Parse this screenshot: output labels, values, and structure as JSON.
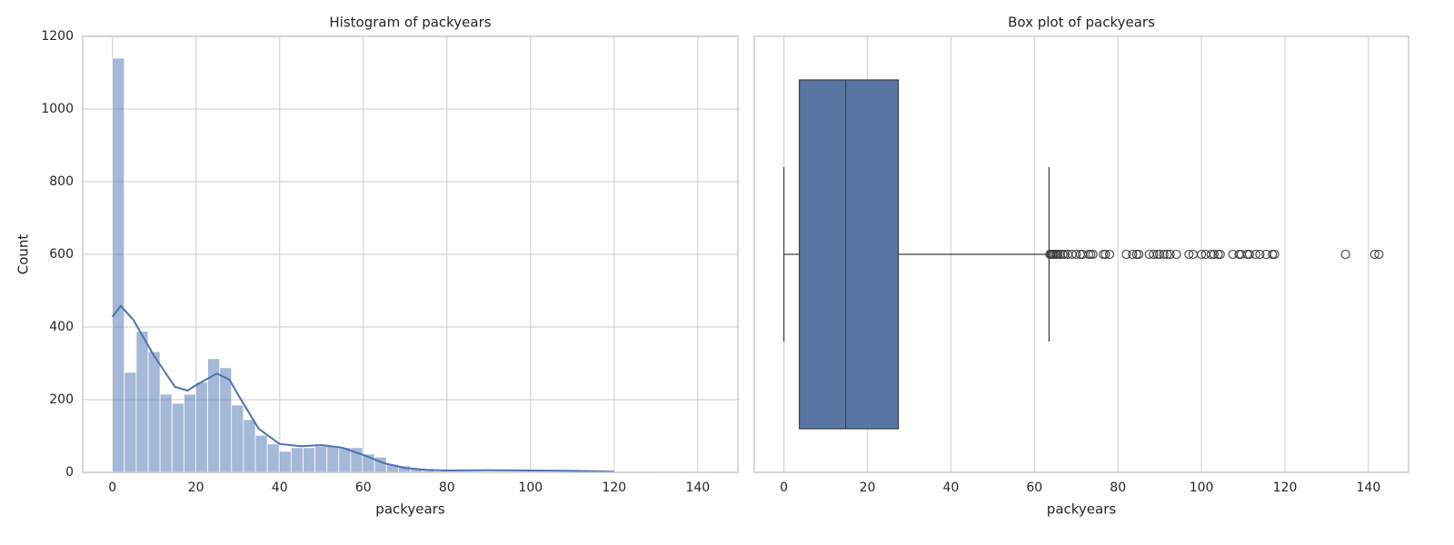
{
  "chart_data": [
    {
      "type": "histogram",
      "title": "Histogram of packyears",
      "xlabel": "packyears",
      "ylabel": "Count",
      "bins": [
        0,
        2.85,
        5.7,
        8.55,
        11.4,
        14.25,
        17.1,
        19.95,
        22.8,
        25.65,
        28.5,
        31.35,
        34.2,
        37.05,
        39.9,
        42.75,
        45.6,
        48.45,
        51.3,
        54.15,
        57,
        59.85,
        62.7,
        65.55,
        68.4,
        71.25,
        74.1,
        76.95,
        79.8,
        82.65,
        85.5,
        88.35,
        91.2,
        94.05,
        96.9,
        99.75,
        102.6,
        105.45,
        108.3,
        111.15,
        114,
        116.85,
        119.7,
        122.55,
        125.4,
        128.25,
        131.1,
        133.95,
        136.8,
        139.65,
        142.5
      ],
      "counts": [
        1140,
        275,
        388,
        332,
        215,
        190,
        215,
        248,
        313,
        288,
        185,
        145,
        102,
        78,
        58,
        68,
        68,
        72,
        72,
        68,
        68,
        50,
        42,
        22,
        18,
        8,
        5,
        3,
        2,
        2,
        1,
        2,
        1,
        1,
        2,
        1,
        2,
        2,
        1,
        2,
        1,
        0,
        0,
        0,
        0,
        0,
        1,
        0,
        0,
        2
      ],
      "color": "#4c72b0",
      "kde": {
        "x": [
          0,
          2,
          5,
          10,
          15,
          18,
          20,
          25,
          28,
          30,
          35,
          40,
          45,
          50,
          55,
          60,
          65,
          70,
          75,
          80,
          90,
          100,
          110,
          120
        ],
        "y": [
          428,
          458,
          420,
          320,
          235,
          225,
          240,
          272,
          255,
          215,
          120,
          78,
          72,
          75,
          68,
          48,
          25,
          12,
          7,
          5,
          6,
          5,
          4,
          2
        ],
        "color": "#4c72b0"
      },
      "xlim": [
        -7.1,
        149.6
      ],
      "ylim": [
        0,
        1200
      ],
      "xticks": [
        0,
        20,
        40,
        60,
        80,
        100,
        120,
        140
      ],
      "yticks": [
        0,
        200,
        400,
        600,
        800,
        1000,
        1200
      ],
      "grid": true
    },
    {
      "type": "box",
      "title": "Box plot of packyears",
      "xlabel": "packyears",
      "whislo": 0,
      "q1": 3.7,
      "med": 14.8,
      "q3": 27.4,
      "whishi": 63.5,
      "outliers": [
        63.7,
        64,
        64.3,
        64.6,
        65,
        65.3,
        65.7,
        66.2,
        66.8,
        67.3,
        68,
        69,
        70,
        71,
        71.5,
        73,
        73.5,
        74,
        76.5,
        77,
        78,
        82,
        83.5,
        84.5,
        85,
        87.5,
        88.5,
        89.5,
        90,
        91,
        91.8,
        92.5,
        94,
        97,
        98,
        100,
        101,
        102.3,
        103,
        104,
        104.5,
        107.5,
        109,
        109.5,
        111,
        111.5,
        113,
        114,
        115.5,
        117,
        117.5,
        134.5,
        141.5,
        142.5
      ],
      "color": "#5875a4",
      "xlim": [
        -7.1,
        149.6
      ],
      "xticks": [
        0,
        20,
        40,
        60,
        80,
        100,
        120,
        140
      ],
      "grid": true
    }
  ]
}
